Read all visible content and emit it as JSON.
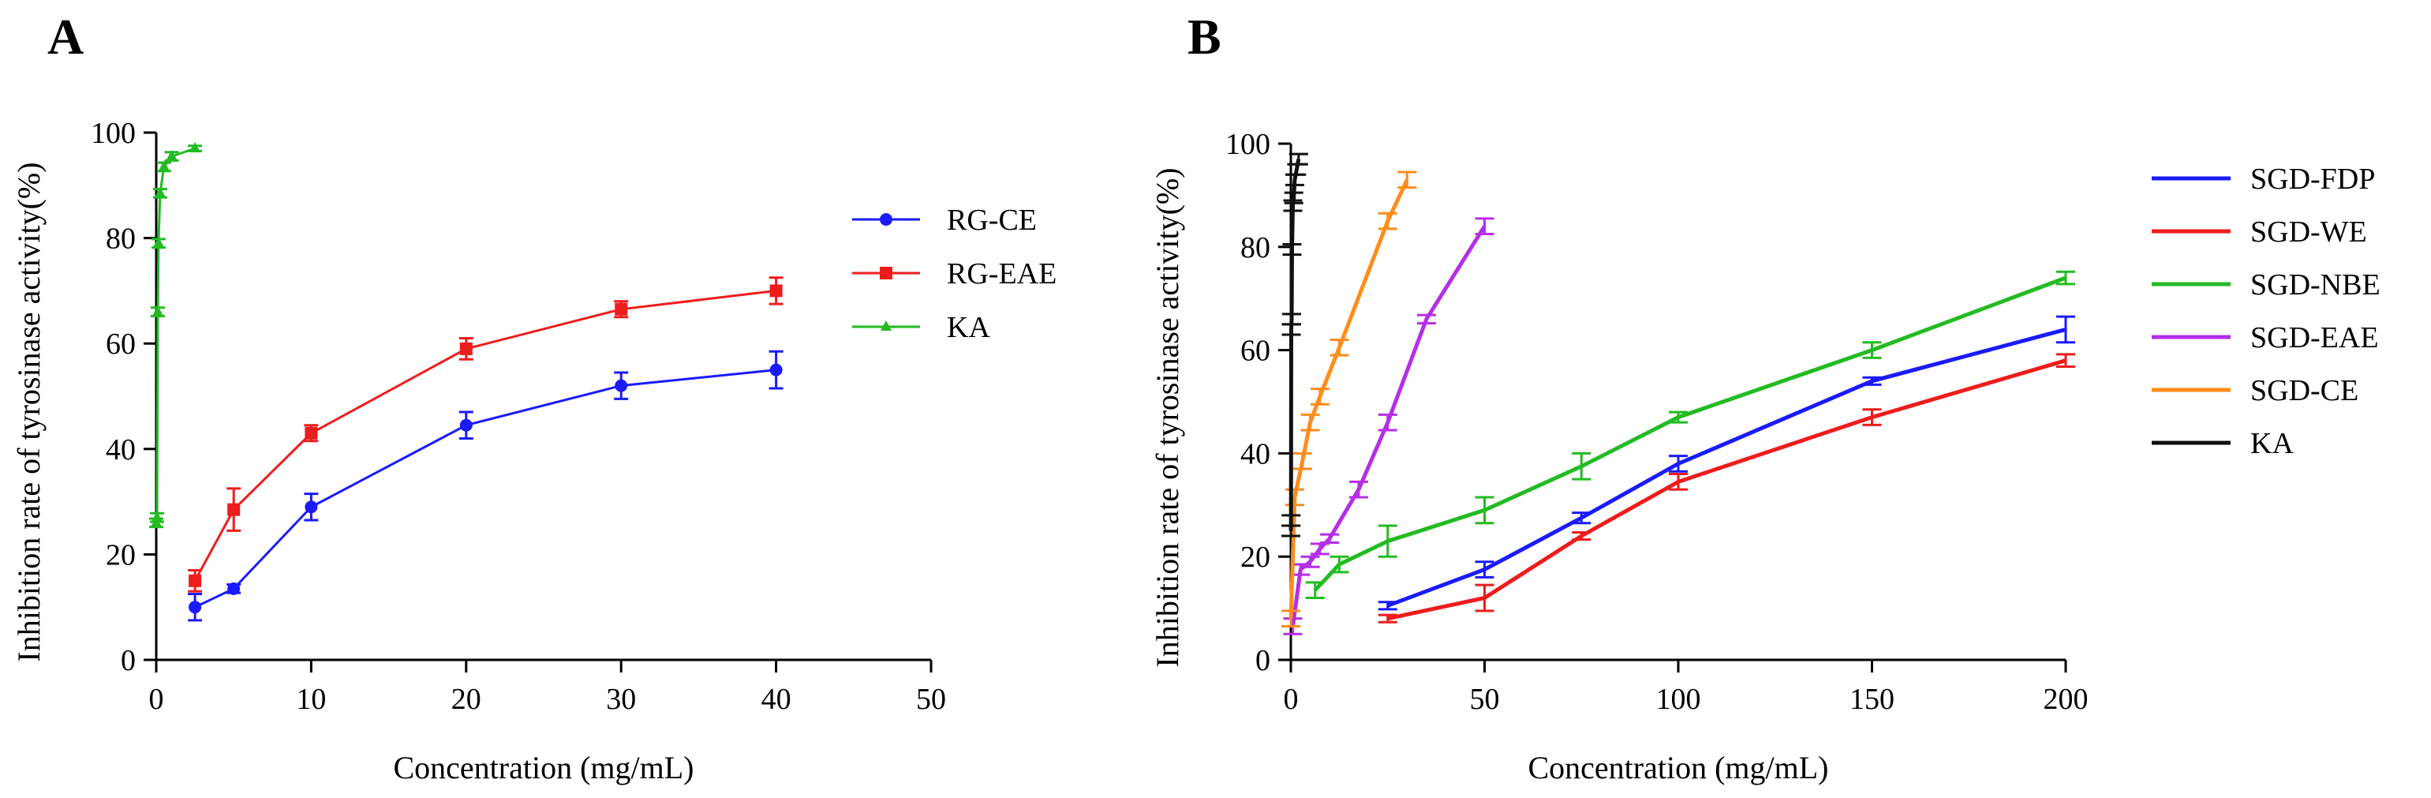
{
  "chart_data": [
    {
      "panel": "A",
      "type": "line",
      "xlabel": "Concentration (mg/mL)",
      "ylabel": "Inhibition rate of tyrosinase activity(%)",
      "xlim": [
        0,
        50
      ],
      "ylim": [
        0,
        100
      ],
      "xticks": [
        0,
        10,
        20,
        30,
        40,
        50
      ],
      "yticks": [
        0,
        20,
        40,
        60,
        80,
        100
      ],
      "legend_position": "right",
      "series": [
        {
          "name": "RG-CE",
          "color": "#1a1aff",
          "marker": "circle",
          "x": [
            2.5,
            5,
            10,
            20,
            30,
            40
          ],
          "y": [
            10,
            13.5,
            29,
            44.5,
            52,
            55
          ],
          "err": [
            2.5,
            0.8,
            2.5,
            2.5,
            2.5,
            3.5
          ]
        },
        {
          "name": "RG-EAE",
          "color": "#ee1c1c",
          "marker": "square",
          "x": [
            2.5,
            5,
            10,
            20,
            30,
            40
          ],
          "y": [
            15,
            28.5,
            43,
            59,
            66.5,
            70
          ],
          "err": [
            2,
            4,
            1.5,
            2,
            1.5,
            2.5
          ]
        },
        {
          "name": "KA",
          "color": "#22bb22",
          "marker": "triangle",
          "x": [
            0,
            0.05,
            0.1,
            0.15,
            0.25,
            0.5,
            1,
            2.5
          ],
          "y": [
            26,
            27,
            66,
            79,
            88.5,
            93.5,
            95.5,
            97
          ],
          "err": [
            0.8,
            0.8,
            0.8,
            0.8,
            0.8,
            0.8,
            0.8,
            0.5
          ]
        }
      ]
    },
    {
      "panel": "B",
      "type": "line",
      "xlabel": "Concentration (mg/mL)",
      "ylabel": "Inhibition rate of tyrosinase activity(%)",
      "xlim": [
        0,
        200
      ],
      "ylim": [
        0,
        100
      ],
      "xticks": [
        0,
        50,
        100,
        150,
        200
      ],
      "yticks": [
        0,
        20,
        40,
        60,
        80,
        100
      ],
      "legend_position": "right",
      "series": [
        {
          "name": "SGD-FDP",
          "color": "#1a1aff",
          "x": [
            25,
            50,
            75,
            100,
            150,
            200
          ],
          "y": [
            10.5,
            17.5,
            27.5,
            38,
            54,
            64
          ],
          "err": [
            0.7,
            1.5,
            1,
            1.5,
            0.7,
            2.5
          ]
        },
        {
          "name": "SGD-WE",
          "color": "#ee1c1c",
          "x": [
            25,
            50,
            75,
            100,
            150,
            200
          ],
          "y": [
            8,
            12,
            24,
            34.5,
            47,
            58
          ],
          "err": [
            0.7,
            2.5,
            0.7,
            1.5,
            1.5,
            1.2
          ]
        },
        {
          "name": "SGD-NBE",
          "color": "#22bb22",
          "x": [
            6.25,
            12.5,
            25,
            50,
            75,
            100,
            150,
            200
          ],
          "y": [
            13.5,
            18.5,
            23,
            29,
            37.5,
            47,
            60,
            74
          ],
          "err": [
            1.5,
            1.5,
            3,
            2.5,
            2.5,
            1,
            1.5,
            1.2
          ]
        },
        {
          "name": "SGD-EAE",
          "color": "#b42ee8",
          "x": [
            0.5,
            2.5,
            5,
            7.5,
            10,
            17.5,
            25,
            35,
            50
          ],
          "y": [
            6.5,
            17.5,
            19,
            21.5,
            23.5,
            33,
            46,
            66,
            84
          ],
          "err": [
            1.5,
            1,
            1,
            1,
            0.8,
            1.5,
            1.5,
            0.8,
            1.5
          ]
        },
        {
          "name": "SGD-CE",
          "color": "#ff8c1a",
          "x": [
            0,
            1,
            3,
            5,
            7.5,
            12.5,
            25,
            30
          ],
          "y": [
            8,
            31.5,
            38.5,
            46,
            51,
            60.5,
            85,
            93
          ],
          "err": [
            1.5,
            1.5,
            1.5,
            1.5,
            1.5,
            1.5,
            1.5,
            1.5
          ]
        },
        {
          "name": "KA",
          "color": "#111111",
          "x": [
            0,
            0.05,
            0.1,
            0.2,
            0.3,
            0.5,
            0.75,
            1,
            1.5,
            2
          ],
          "y": [
            25,
            27,
            64,
            66,
            79.5,
            88,
            89.5,
            93,
            95,
            97
          ],
          "err": [
            1,
            1,
            1,
            1,
            1,
            1,
            1,
            1,
            1,
            1
          ]
        }
      ]
    }
  ]
}
